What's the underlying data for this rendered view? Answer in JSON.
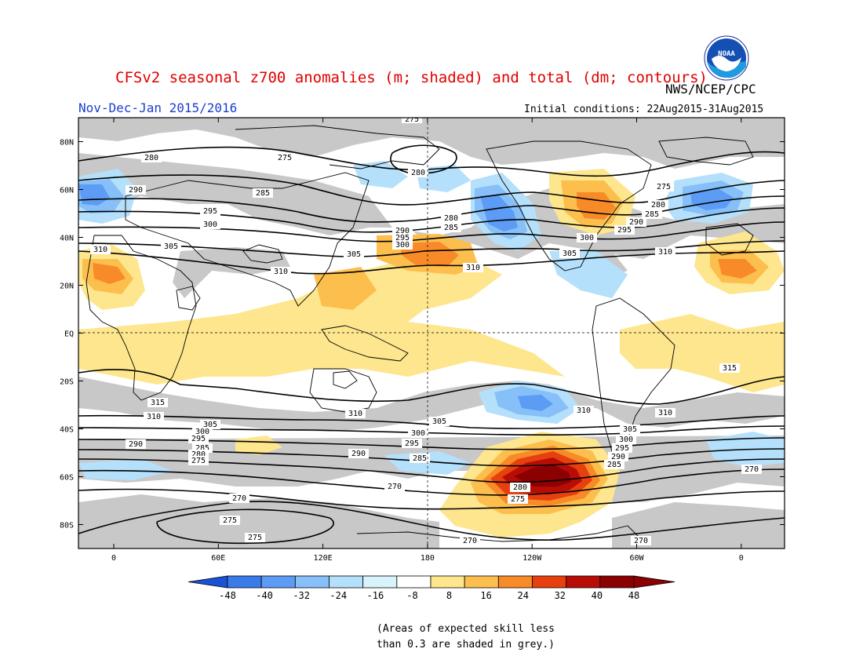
{
  "header": {
    "title": "CFSv2 seasonal z700 anomalies (m; shaded) and total (dm; contours)",
    "agency": "NWS/NCEP/CPC",
    "period": "Nov-Dec-Jan 2015/2016",
    "initial_conditions": "Initial conditions: 22Aug2015-31Aug2015",
    "logo_text": "NOAA"
  },
  "map": {
    "projection": "cylindrical",
    "lon_range": [
      -20,
      380
    ],
    "lat_range": [
      -90,
      90
    ],
    "lat_labels": [
      "80N",
      "60N",
      "40N",
      "20N",
      "EQ",
      "20S",
      "40S",
      "60S",
      "80S"
    ],
    "lon_labels": [
      "0",
      "60E",
      "120E",
      "180",
      "120W",
      "60W",
      "0"
    ],
    "contour_levels_dm": [
      270,
      275,
      280,
      285,
      290,
      295,
      300,
      305,
      310,
      315
    ],
    "anomaly_regions": [
      {
        "name": "ne-atlantic-europe-negative",
        "value": -32
      },
      {
        "name": "north-pacific-negative",
        "value": -32
      },
      {
        "name": "north-america-positive",
        "value": 32
      },
      {
        "name": "nw-africa-positive",
        "value": 24
      },
      {
        "name": "west-pacific-positive",
        "value": 24
      },
      {
        "name": "south-pacific-positive",
        "value": 48
      },
      {
        "name": "south-pacific-subtropic-negative",
        "value": -24
      },
      {
        "name": "tropical-positive",
        "value": 8
      }
    ]
  },
  "colorbar": {
    "tick_labels": [
      "-48",
      "-40",
      "-32",
      "-24",
      "-16",
      "-8",
      "8",
      "16",
      "24",
      "32",
      "40",
      "48"
    ],
    "colors": [
      "#1a52d6",
      "#3a7bea",
      "#5c9cf5",
      "#87bff9",
      "#b4e0fb",
      "#d8f3fb",
      "#ffffff",
      "#fde68d",
      "#fcbf4e",
      "#f88b28",
      "#e6400f",
      "#b80d06",
      "#8b0000"
    ]
  },
  "note": {
    "line1": "(Areas of expected skill less",
    "line2": "than 0.3 are shaded in grey.)"
  }
}
